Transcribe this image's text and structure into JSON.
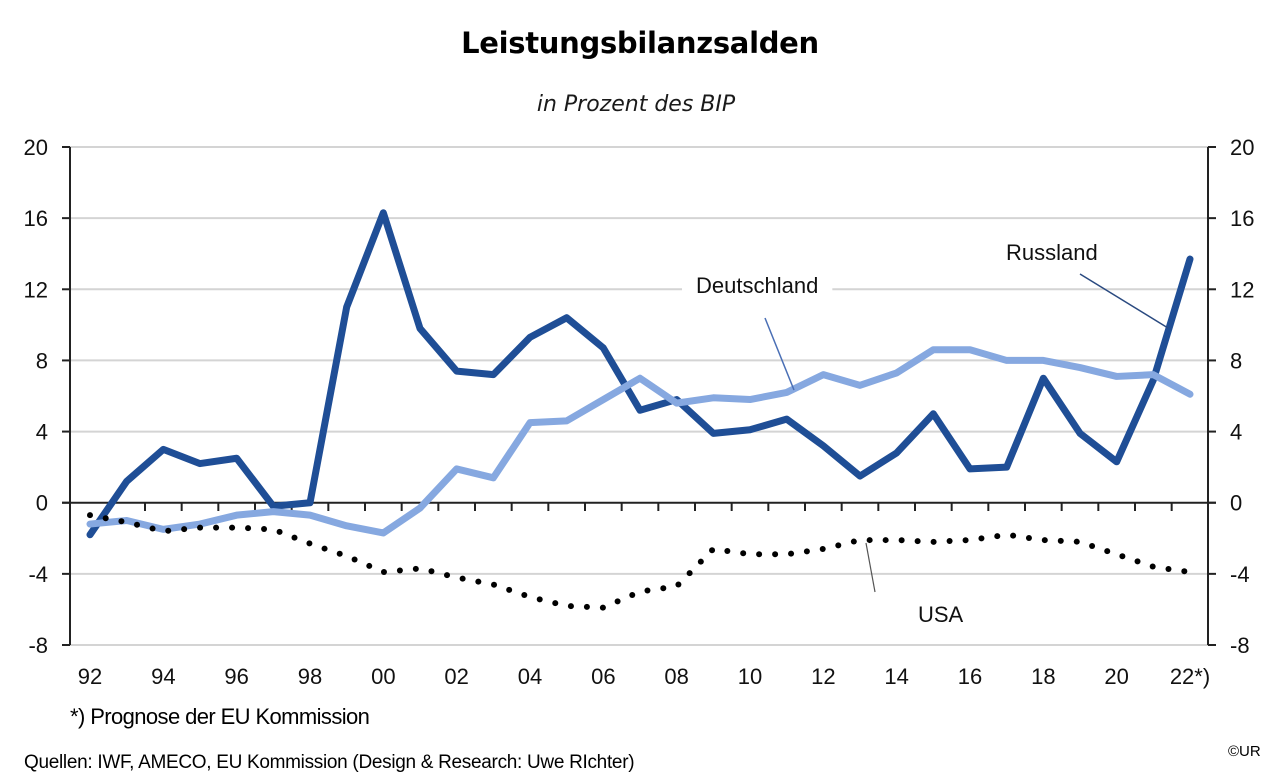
{
  "chart_data": {
    "type": "line",
    "title": "Leistungsbilanzsalden",
    "subtitle": "in Prozent des BIP",
    "xlabel": "",
    "ylabel": "",
    "ylim": [
      -8,
      20
    ],
    "y_ticks": [
      20,
      16,
      12,
      8,
      4,
      0,
      -4,
      -8
    ],
    "y_tick_labels": [
      "20",
      "16",
      "12",
      "8",
      "4",
      "0",
      "-4",
      "-8"
    ],
    "secondary_y_ticks": [
      20,
      16,
      12,
      8,
      4,
      0,
      -4,
      -8
    ],
    "x": [
      1992,
      1993,
      1994,
      1995,
      1996,
      1997,
      1998,
      1999,
      2000,
      2001,
      2002,
      2003,
      2004,
      2005,
      2006,
      2007,
      2008,
      2009,
      2010,
      2011,
      2012,
      2013,
      2014,
      2015,
      2016,
      2017,
      2018,
      2019,
      2020,
      2021,
      2022
    ],
    "x_tick_labels": [
      "92",
      "94",
      "96",
      "98",
      "00",
      "02",
      "04",
      "06",
      "08",
      "10",
      "12",
      "14",
      "16",
      "18",
      "20",
      "22*)"
    ],
    "x_tick_label_years": [
      1992,
      1994,
      1996,
      1998,
      2000,
      2002,
      2004,
      2006,
      2008,
      2010,
      2012,
      2014,
      2016,
      2018,
      2020,
      2022
    ],
    "grid": true,
    "legend": "inline-annotations",
    "series": [
      {
        "name": "Russland",
        "style": "solid-thick",
        "color": "#1F4E96",
        "values": [
          -1.8,
          1.2,
          3.0,
          2.2,
          2.5,
          -0.2,
          0.0,
          11.0,
          16.3,
          9.8,
          7.4,
          7.2,
          9.3,
          10.4,
          8.7,
          5.2,
          5.8,
          3.9,
          4.1,
          4.7,
          3.2,
          1.5,
          2.8,
          5.0,
          1.9,
          2.0,
          7.0,
          3.9,
          2.3,
          6.9,
          13.7
        ]
      },
      {
        "name": "Deutschland",
        "style": "solid-thick",
        "color": "#86A8E0",
        "values": [
          -1.2,
          -1.0,
          -1.5,
          -1.2,
          -0.7,
          -0.5,
          -0.7,
          -1.3,
          -1.7,
          -0.3,
          1.9,
          1.4,
          4.5,
          4.6,
          5.8,
          7.0,
          5.6,
          5.9,
          5.8,
          6.2,
          7.2,
          6.6,
          7.3,
          8.6,
          8.6,
          8.0,
          8.0,
          7.6,
          7.1,
          7.2,
          6.1
        ]
      },
      {
        "name": "USA",
        "style": "dotted",
        "color": "#000000",
        "values": [
          -0.7,
          -1.1,
          -1.6,
          -1.4,
          -1.4,
          -1.5,
          -2.3,
          -3.0,
          -3.9,
          -3.7,
          -4.2,
          -4.6,
          -5.3,
          -5.8,
          -5.9,
          -5.0,
          -4.7,
          -2.6,
          -2.9,
          -2.9,
          -2.6,
          -2.1,
          -2.1,
          -2.2,
          -2.1,
          -1.8,
          -2.1,
          -2.2,
          -2.9,
          -3.6,
          -3.9
        ]
      }
    ],
    "annotations": [
      {
        "text": "Russland",
        "series": "Russland",
        "points_to_year": 2021.5
      },
      {
        "text": "Deutschland",
        "series": "Deutschland",
        "points_to_year": 2011
      },
      {
        "text": "USA",
        "series": "USA",
        "points_to_year": 2015
      }
    ],
    "footnote": "*) Prognose der EU Kommission",
    "sources": "Quellen: IWF, AMECO, EU Kommission (Design & Research: Uwe RIchter)",
    "copyright": "©UR"
  }
}
